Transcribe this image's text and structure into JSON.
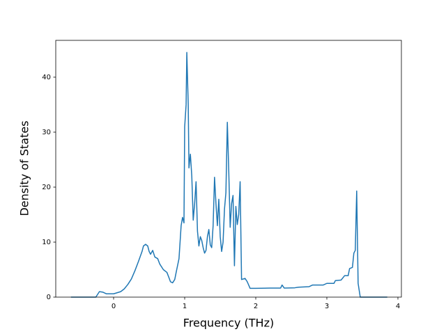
{
  "chart_data": {
    "type": "line",
    "x_label": "Frequency (THz)",
    "y_label": "Density of States",
    "x": [
      -0.6,
      -0.25,
      -0.2,
      -0.15,
      -0.1,
      0,
      0.1,
      0.15,
      0.2,
      0.25,
      0.3,
      0.35,
      0.4,
      0.42,
      0.45,
      0.48,
      0.5,
      0.52,
      0.55,
      0.58,
      0.62,
      0.65,
      0.7,
      0.75,
      0.78,
      0.8,
      0.83,
      0.86,
      0.88,
      0.92,
      0.95,
      0.97,
      0.99,
      1.0,
      1.02,
      1.03,
      1.05,
      1.06,
      1.08,
      1.1,
      1.12,
      1.14,
      1.16,
      1.18,
      1.2,
      1.22,
      1.24,
      1.26,
      1.28,
      1.3,
      1.32,
      1.34,
      1.36,
      1.38,
      1.4,
      1.42,
      1.44,
      1.46,
      1.48,
      1.5,
      1.52,
      1.54,
      1.56,
      1.58,
      1.6,
      1.62,
      1.64,
      1.66,
      1.68,
      1.7,
      1.72,
      1.74,
      1.76,
      1.78,
      1.8,
      1.85,
      1.88,
      1.92,
      2.0,
      2.2,
      2.35,
      2.37,
      2.4,
      2.55,
      2.6,
      2.75,
      2.8,
      2.95,
      3.0,
      3.1,
      3.12,
      3.2,
      3.25,
      3.3,
      3.32,
      3.36,
      3.38,
      3.4,
      3.42,
      3.44,
      3.47,
      3.85
    ],
    "series": [
      {
        "name": "DOS",
        "color": "#1f77b4",
        "values": [
          0,
          0,
          1.0,
          0.9,
          0.6,
          0.6,
          1.0,
          1.5,
          2.3,
          3.3,
          4.8,
          6.5,
          8.3,
          9.3,
          9.6,
          9.3,
          8.3,
          7.8,
          8.5,
          7.3,
          7.0,
          6.0,
          5.0,
          4.5,
          3.5,
          2.8,
          2.6,
          3.2,
          4.5,
          7.0,
          13,
          14.5,
          13.5,
          31,
          35,
          44.5,
          35,
          23.5,
          26,
          22,
          14,
          17,
          21,
          12,
          9.3,
          11,
          10.3,
          9,
          8,
          8.5,
          11,
          12.3,
          9.5,
          9,
          13,
          21.8,
          17,
          13,
          17.8,
          11,
          8.3,
          10,
          16,
          19,
          31.8,
          23,
          12.7,
          17,
          18.5,
          5.7,
          16.5,
          13.2,
          15,
          21,
          3.2,
          3.4,
          2.8,
          1.6,
          1.6,
          1.65,
          1.65,
          2.2,
          1.65,
          1.7,
          1.8,
          1.9,
          2.2,
          2.2,
          2.5,
          2.5,
          3.0,
          3.1,
          3.9,
          3.9,
          5.2,
          5.4,
          8,
          8.5,
          19.3,
          2.5,
          0,
          0
        ]
      }
    ],
    "xlim": [
      -0.814,
      4.049
    ],
    "ylim": [
      0,
      46.7
    ],
    "xticks": [
      0,
      1,
      2,
      3,
      4
    ],
    "yticks": [
      0,
      10,
      20,
      30,
      40
    ],
    "grid": false
  }
}
